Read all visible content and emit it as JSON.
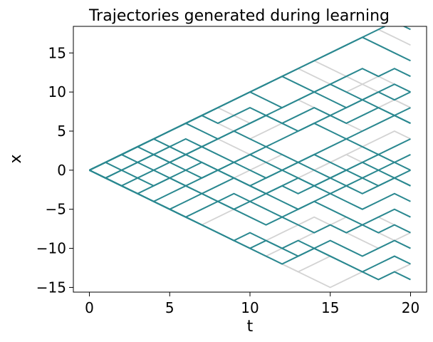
{
  "chart_data": {
    "type": "line",
    "title": "Trajectories generated during learning",
    "xlabel": "t",
    "ylabel": "x",
    "xlim": [
      -1,
      21
    ],
    "ylim": [
      -15.6,
      18.4
    ],
    "xticks": [
      0,
      5,
      10,
      15,
      20
    ],
    "xtick_labels": [
      "0",
      "5",
      "10",
      "15",
      "20"
    ],
    "yticks": [
      -15,
      -10,
      -5,
      0,
      5,
      10,
      15
    ],
    "ytick_labels": [
      "−15",
      "−10",
      "−5",
      "0",
      "5",
      "10",
      "15"
    ],
    "grid": false,
    "legend": "none",
    "colors": {
      "current": "#2a8890",
      "past": "#d3d3d3"
    },
    "trajectory_groups": [
      {
        "style": "past",
        "t": [
          0,
          1,
          2,
          3,
          4,
          5,
          6,
          7,
          8,
          9,
          10,
          11,
          12,
          13,
          14,
          15,
          16,
          17,
          18,
          19,
          20
        ],
        "trajectories": [
          [
            0,
            1,
            2,
            3,
            4,
            5,
            6,
            7,
            8,
            9,
            10,
            11,
            12,
            13,
            14,
            15,
            16,
            17,
            16,
            15,
            14
          ],
          [
            0,
            1,
            2,
            3,
            4,
            5,
            6,
            7,
            8,
            9,
            10,
            11,
            12,
            13,
            14,
            15,
            16,
            17,
            18,
            17,
            16
          ],
          [
            0,
            1,
            2,
            3,
            4,
            5,
            6,
            7,
            8,
            9,
            10,
            11,
            12,
            13,
            12,
            11,
            10,
            11,
            12,
            11,
            10
          ],
          [
            0,
            1,
            2,
            3,
            4,
            5,
            6,
            7,
            8,
            9,
            10,
            9,
            8,
            9,
            10,
            11,
            10,
            9,
            8,
            9,
            10
          ],
          [
            0,
            1,
            2,
            3,
            4,
            5,
            6,
            7,
            8,
            7,
            6,
            7,
            8,
            9,
            8,
            7,
            8,
            9,
            10,
            9,
            8
          ],
          [
            0,
            1,
            2,
            3,
            4,
            5,
            6,
            7,
            6,
            5,
            4,
            5,
            6,
            7,
            8,
            7,
            6,
            5,
            6,
            7,
            6
          ],
          [
            0,
            1,
            2,
            1,
            0,
            1,
            2,
            3,
            4,
            3,
            2,
            1,
            0,
            1,
            0,
            -1,
            0,
            1,
            2,
            1,
            0
          ],
          [
            0,
            -1,
            -2,
            -1,
            0,
            -1,
            -2,
            -3,
            -2,
            -1,
            0,
            1,
            2,
            1,
            0,
            1,
            2,
            1,
            0,
            -1,
            0
          ],
          [
            0,
            -1,
            -2,
            -3,
            -4,
            -5,
            -6,
            -7,
            -6,
            -5,
            -4,
            -5,
            -6,
            -7,
            -8,
            -7,
            -6,
            -7,
            -8,
            -9,
            -10
          ],
          [
            0,
            -1,
            -2,
            -3,
            -4,
            -5,
            -6,
            -7,
            -8,
            -9,
            -10,
            -11,
            -10,
            -9,
            -8,
            -7,
            -8,
            -9,
            -10,
            -9,
            -8
          ],
          [
            0,
            -1,
            -2,
            -3,
            -4,
            -5,
            -6,
            -7,
            -8,
            -9,
            -10,
            -9,
            -8,
            -7,
            -6,
            -7,
            -8,
            -7,
            -6,
            -7,
            -8
          ],
          [
            0,
            -1,
            -2,
            -3,
            -4,
            -5,
            -6,
            -7,
            -8,
            -9,
            -10,
            -11,
            -12,
            -13,
            -14,
            -15,
            -14,
            -13,
            -14,
            -13,
            -12
          ],
          [
            0,
            -1,
            -2,
            -3,
            -4,
            -5,
            -6,
            -7,
            -8,
            -9,
            -10,
            -11,
            -12,
            -13,
            -12,
            -11,
            -12,
            -13,
            -14,
            -13,
            -12
          ],
          [
            0,
            1,
            2,
            3,
            4,
            5,
            6,
            7,
            8,
            9,
            10,
            11,
            12,
            13,
            14,
            13,
            12,
            11,
            10,
            9,
            8
          ],
          [
            0,
            1,
            0,
            1,
            2,
            3,
            2,
            1,
            0,
            -1,
            -2,
            -3,
            -2,
            -1,
            0,
            1,
            2,
            3,
            4,
            5,
            4
          ]
        ]
      },
      {
        "style": "current",
        "t": [
          0,
          1,
          2,
          3,
          4,
          5,
          6,
          7,
          8,
          9,
          10,
          11,
          12,
          13,
          14,
          15,
          16,
          17,
          18,
          19,
          20
        ],
        "trajectories": [
          [
            0,
            1,
            2,
            3,
            4,
            5,
            6,
            7,
            8,
            9,
            10,
            11,
            12,
            13,
            14,
            15,
            16,
            17,
            18,
            19,
            18
          ],
          [
            0,
            1,
            2,
            3,
            4,
            5,
            6,
            7,
            8,
            9,
            10,
            11,
            12,
            13,
            14,
            15,
            16,
            17,
            16,
            15,
            14
          ],
          [
            0,
            1,
            2,
            3,
            4,
            5,
            6,
            7,
            8,
            9,
            10,
            11,
            12,
            11,
            10,
            11,
            12,
            13,
            12,
            13,
            12
          ],
          [
            0,
            1,
            2,
            3,
            4,
            5,
            6,
            5,
            4,
            5,
            6,
            7,
            8,
            9,
            10,
            11,
            10,
            9,
            10,
            11,
            10
          ],
          [
            0,
            1,
            2,
            3,
            4,
            3,
            2,
            3,
            4,
            5,
            6,
            7,
            6,
            5,
            6,
            7,
            8,
            9,
            8,
            7,
            8
          ],
          [
            0,
            1,
            2,
            3,
            2,
            1,
            2,
            3,
            4,
            5,
            4,
            3,
            4,
            5,
            6,
            5,
            4,
            5,
            6,
            7,
            6
          ],
          [
            0,
            1,
            0,
            1,
            2,
            3,
            4,
            3,
            2,
            1,
            2,
            3,
            2,
            1,
            2,
            3,
            4,
            3,
            2,
            3,
            4
          ],
          [
            0,
            1,
            2,
            1,
            0,
            1,
            2,
            1,
            0,
            1,
            2,
            1,
            0,
            1,
            2,
            1,
            0,
            1,
            2,
            1,
            2
          ],
          [
            0,
            -1,
            0,
            1,
            2,
            1,
            0,
            -1,
            0,
            1,
            0,
            -1,
            0,
            1,
            0,
            -1,
            0,
            1,
            0,
            -1,
            0
          ],
          [
            0,
            -1,
            -2,
            -1,
            0,
            -1,
            -2,
            -1,
            0,
            -1,
            -2,
            -1,
            0,
            -1,
            -2,
            -1,
            0,
            -1,
            0,
            1,
            0
          ],
          [
            0,
            -1,
            -2,
            -3,
            -2,
            -1,
            -2,
            -3,
            -2,
            -1,
            -2,
            -3,
            -2,
            -1,
            -2,
            -3,
            -2,
            -1,
            -2,
            -1,
            -2
          ],
          [
            0,
            -1,
            -2,
            -3,
            -4,
            -5,
            -4,
            -3,
            -4,
            -5,
            -4,
            -3,
            -4,
            -5,
            -4,
            -3,
            -4,
            -5,
            -4,
            -3,
            -4
          ],
          [
            0,
            -1,
            -2,
            -3,
            -4,
            -3,
            -2,
            -3,
            -4,
            -3,
            -4,
            -5,
            -6,
            -5,
            -4,
            -5,
            -6,
            -7,
            -6,
            -5,
            -6
          ],
          [
            0,
            -1,
            -2,
            -3,
            -4,
            -5,
            -6,
            -5,
            -4,
            -5,
            -6,
            -7,
            -6,
            -7,
            -8,
            -7,
            -8,
            -7,
            -8,
            -7,
            -8
          ],
          [
            0,
            -1,
            -2,
            -3,
            -4,
            -5,
            -6,
            -7,
            -8,
            -9,
            -10,
            -9,
            -10,
            -9,
            -10,
            -9,
            -10,
            -11,
            -10,
            -9,
            -10
          ],
          [
            0,
            -1,
            -2,
            -3,
            -4,
            -5,
            -6,
            -7,
            -8,
            -9,
            -8,
            -9,
            -10,
            -11,
            -10,
            -11,
            -12,
            -13,
            -12,
            -11,
            -12
          ],
          [
            0,
            -1,
            -2,
            -3,
            -4,
            -5,
            -6,
            -7,
            -8,
            -9,
            -10,
            -11,
            -12,
            -11,
            -10,
            -11,
            -12,
            -13,
            -14,
            -13,
            -14
          ],
          [
            0,
            1,
            2,
            3,
            4,
            5,
            6,
            7,
            8,
            9,
            10,
            9,
            8,
            9,
            10,
            9,
            8,
            9,
            10,
            9,
            10
          ],
          [
            0,
            1,
            2,
            3,
            4,
            5,
            6,
            7,
            6,
            7,
            8,
            7,
            6,
            7,
            8,
            7,
            6,
            7,
            8,
            7,
            6
          ],
          [
            0,
            -1,
            0,
            -1,
            -2,
            -1,
            0,
            1,
            0,
            -1,
            -2,
            -3,
            -2,
            -3,
            -2,
            -1,
            -2,
            -3,
            -2,
            -1,
            -2
          ]
        ]
      }
    ]
  }
}
